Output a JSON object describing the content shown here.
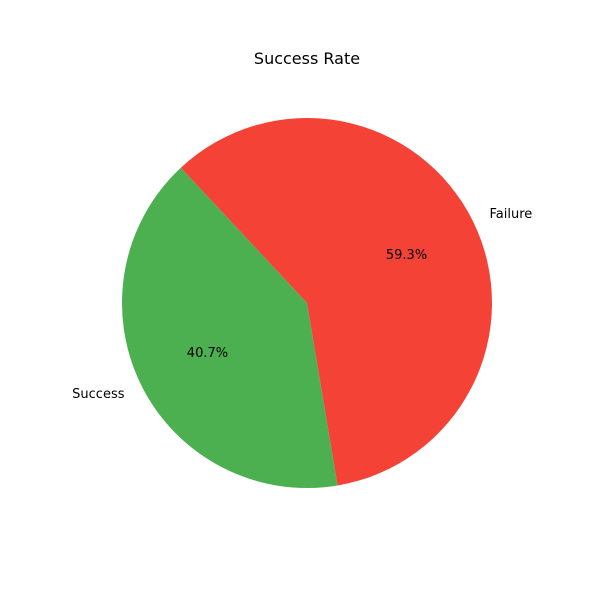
{
  "chart_data": {
    "type": "pie",
    "title": "Success Rate",
    "categories": [
      "Success",
      "Failure"
    ],
    "values": [
      40.7,
      59.3
    ],
    "value_labels": [
      "40.7%",
      "59.3%"
    ],
    "colors": [
      "#4caf50",
      "#f44336"
    ],
    "legend": "none"
  }
}
